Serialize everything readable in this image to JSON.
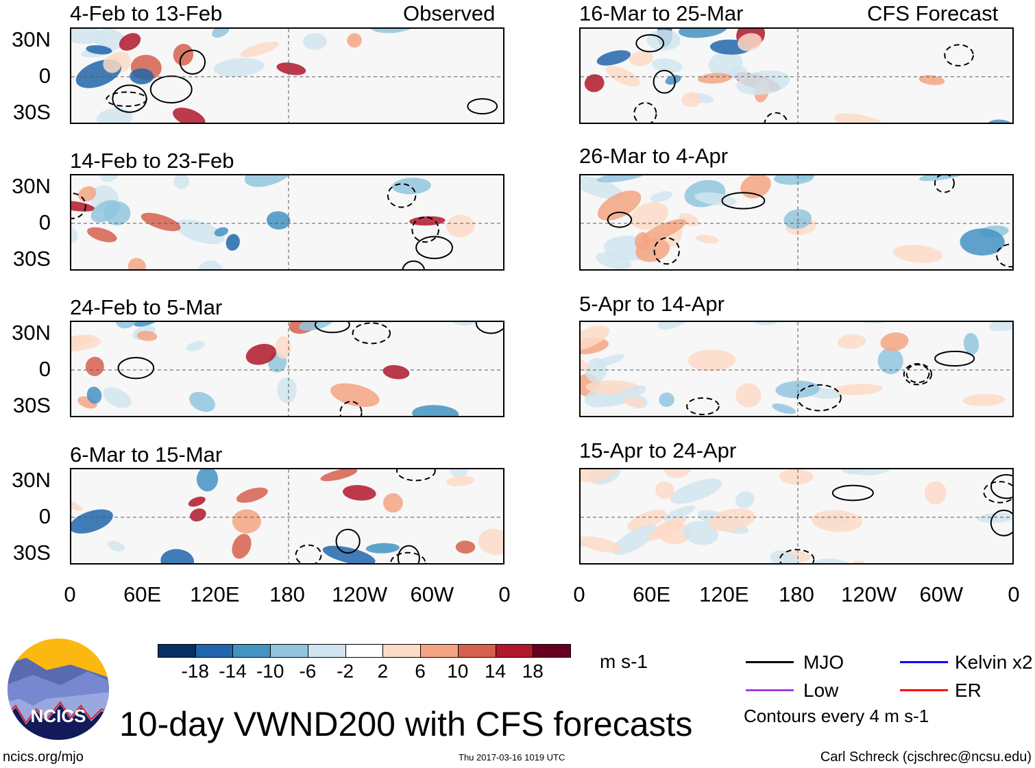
{
  "figure": {
    "title": "10-day VWND200 with CFS forecasts",
    "units": "m s-1",
    "contour_note": "Contours every 4 m s-1",
    "website": "ncics.org/mjo",
    "timestamp": "Thu 2017-03-16 1019 UTC",
    "author": "Carl Schreck (cjschrec@ncsu.edu)",
    "logo_text": "NCICS"
  },
  "columns": {
    "left_label": "Observed",
    "right_label": "CFS Forecast"
  },
  "panels": {
    "left": [
      {
        "period": "4-Feb to 13-Feb"
      },
      {
        "period": "14-Feb to 23-Feb"
      },
      {
        "period": "24-Feb to 5-Mar"
      },
      {
        "period": "6-Mar to 15-Mar"
      }
    ],
    "right": [
      {
        "period": "16-Mar to 25-Mar"
      },
      {
        "period": "26-Mar to 4-Apr"
      },
      {
        "period": "5-Apr to 14-Apr"
      },
      {
        "period": "15-Apr to 24-Apr"
      }
    ]
  },
  "lat_labels": [
    "30N",
    "0",
    "30S"
  ],
  "lon_labels": [
    "0",
    "60E",
    "120E",
    "180",
    "120W",
    "60W",
    "0"
  ],
  "colorbar": {
    "labels": [
      "-18",
      "-14",
      "-10",
      "-6",
      "-2",
      "2",
      "6",
      "10",
      "14",
      "18"
    ],
    "colors": [
      "#053061",
      "#2166ac",
      "#4393c3",
      "#92c5de",
      "#d1e5f0",
      "#ffffff",
      "#fddbc7",
      "#f4a582",
      "#d6604d",
      "#b2182b",
      "#67001f"
    ]
  },
  "legend": [
    {
      "label": "MJO",
      "color": "#000000"
    },
    {
      "label": "Kelvin x2",
      "color": "#0000ff"
    },
    {
      "label": "Low",
      "color": "#a040e0"
    },
    {
      "label": "ER",
      "color": "#ff0000"
    }
  ]
}
